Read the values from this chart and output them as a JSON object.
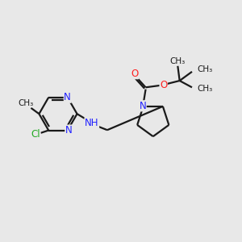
{
  "bg_color": "#e8e8e8",
  "bond_color": "#1a1a1a",
  "N_color": "#2020ff",
  "O_color": "#ff2020",
  "Cl_color": "#22aa22",
  "line_width": 1.6,
  "font_size": 8.5,
  "fig_size": [
    3.0,
    3.0
  ],
  "dpi": 100,
  "xlim": [
    0,
    10
  ],
  "ylim": [
    0,
    10
  ]
}
